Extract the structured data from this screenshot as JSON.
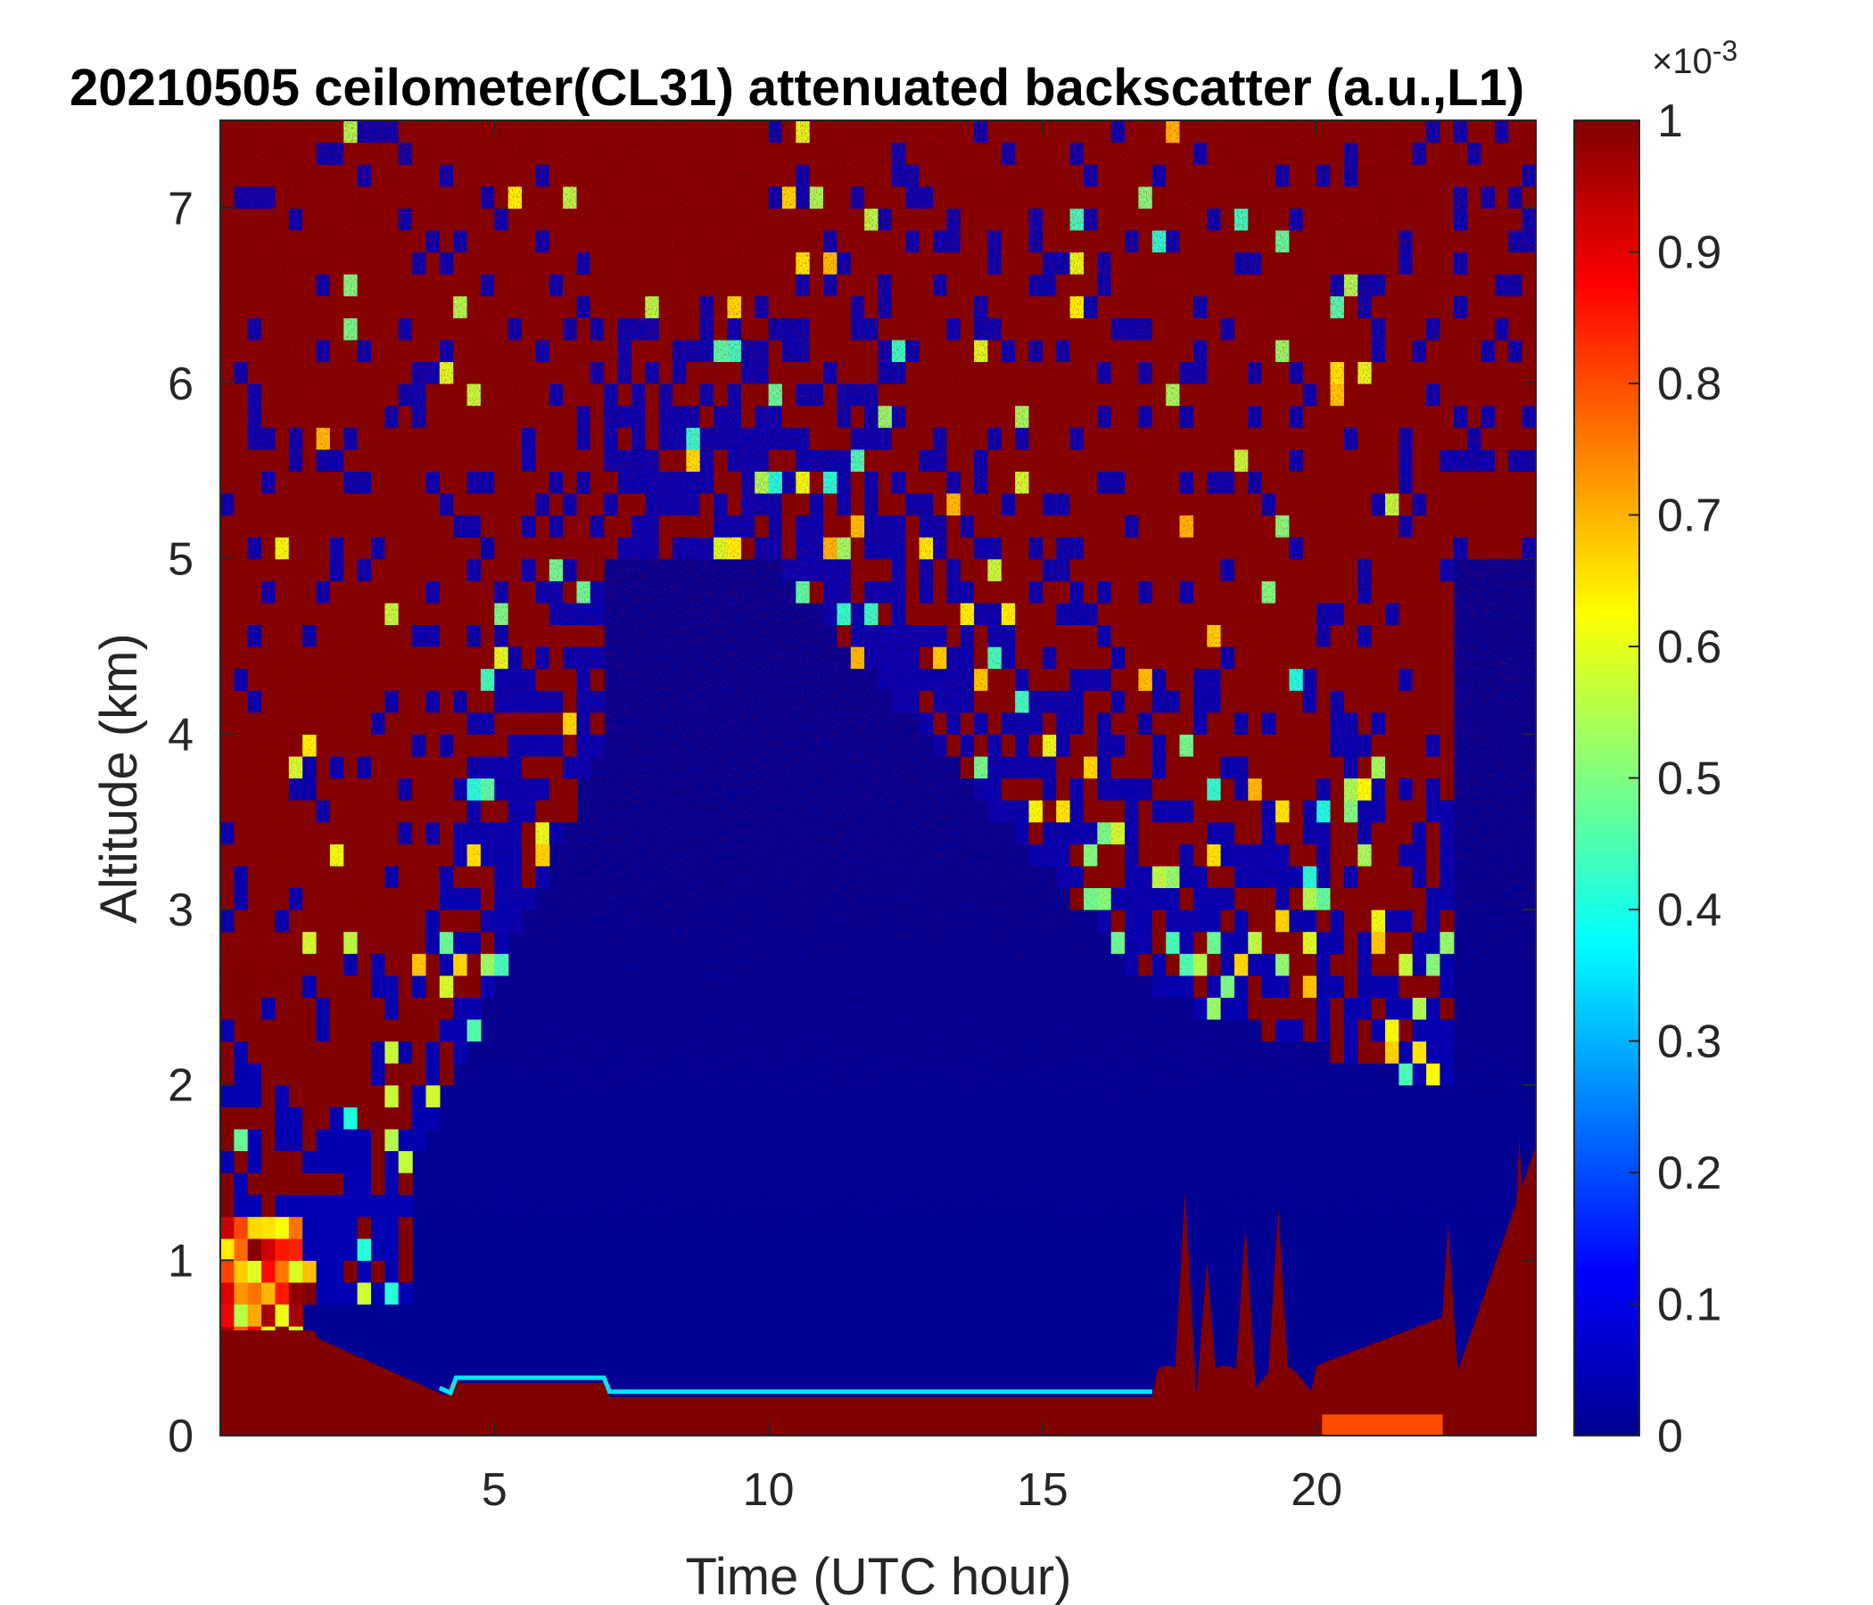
{
  "chart_data": {
    "type": "heatmap",
    "title": "20210505 ceilometer(CL31) attenuated backscatter (a.u.,L1)",
    "xlabel": "Time (UTC hour)",
    "ylabel": "Altitude (km)",
    "xlim": [
      0,
      24
    ],
    "ylim": [
      0,
      7.5
    ],
    "x_ticks": [
      5,
      10,
      15,
      20
    ],
    "y_ticks": [
      0,
      1,
      2,
      3,
      4,
      5,
      6,
      7
    ],
    "colorbar": {
      "colormap": "jet",
      "range": [
        0,
        1
      ],
      "ticks": [
        0,
        0.1,
        0.2,
        0.3,
        0.4,
        0.5,
        0.6,
        0.7,
        0.8,
        0.9,
        1
      ],
      "tick_labels": [
        "0",
        "0.1",
        "0.2",
        "0.3",
        "0.4",
        "0.5",
        "0.6",
        "0.7",
        "0.8",
        "0.9",
        "1"
      ],
      "exponent_base": "×10",
      "exponent_power": "-3"
    },
    "colors": {
      "low": "#00008F",
      "high": "#800000",
      "background": "#ffffff"
    }
  }
}
